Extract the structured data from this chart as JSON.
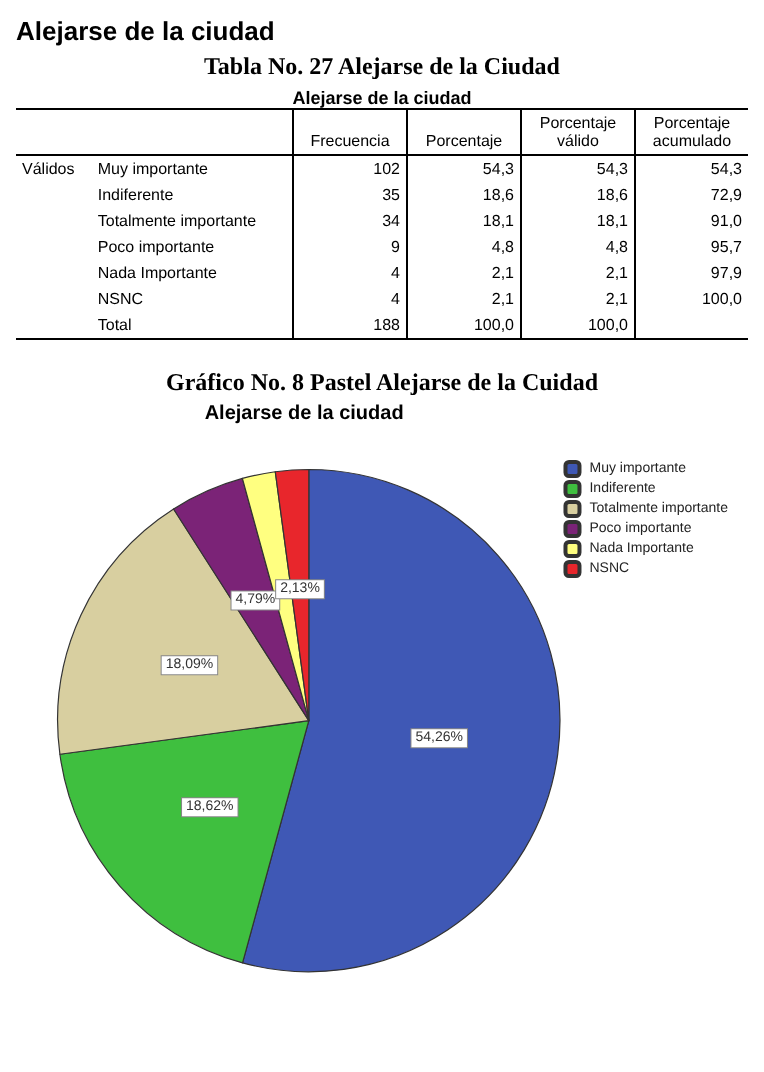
{
  "chart_data": {
    "type": "pie",
    "title": "Gráfico No. 8 Pastel Alejarse de la Cuidad",
    "subtitle": "Alejarse de la ciudad",
    "categories": [
      "Muy importante",
      "Indiferente",
      "Totalmente importante",
      "Poco importante",
      "Nada Importante",
      "NSNC"
    ],
    "values": [
      54.26,
      18.62,
      18.09,
      4.79,
      2.13,
      2.13
    ],
    "value_labels": [
      "54,26%",
      "18,62%",
      "18,09%",
      "4,79%",
      null,
      "2,13%"
    ],
    "colors": [
      "#3f58b5",
      "#3fbf3f",
      "#d8cfa0",
      "#7b2377",
      "#ffff80",
      "#e8262c"
    ],
    "legend": "top right",
    "annotations": [
      "Alejarse de la ciudad",
      "Tabla No. 27 Alejarse de la Ciudad",
      "Alejarse de la ciudad",
      "\t\tFrecuencia\tPorcentaje\tPorcentaje válido\tPorcentaje acumulado",
      "Válidos\tMuy importante\t102\t54,3\t54,3\t54,3",
      "\tIndiferente\t35\t18,6\t18,6\t72,9",
      "\tTotalmente importante\t34\t18,1\t18,1\t91,0",
      "\tPoco importante\t9\t4,8\t4,8\t95,7",
      "\tNada Importante\t4\t2,1\t2,1\t97,9",
      "\tNSNC\t4\t2,1\t2,1\t100,0",
      "\tTotal\t188\t100,0\t100,0\t"
    ]
  }
}
